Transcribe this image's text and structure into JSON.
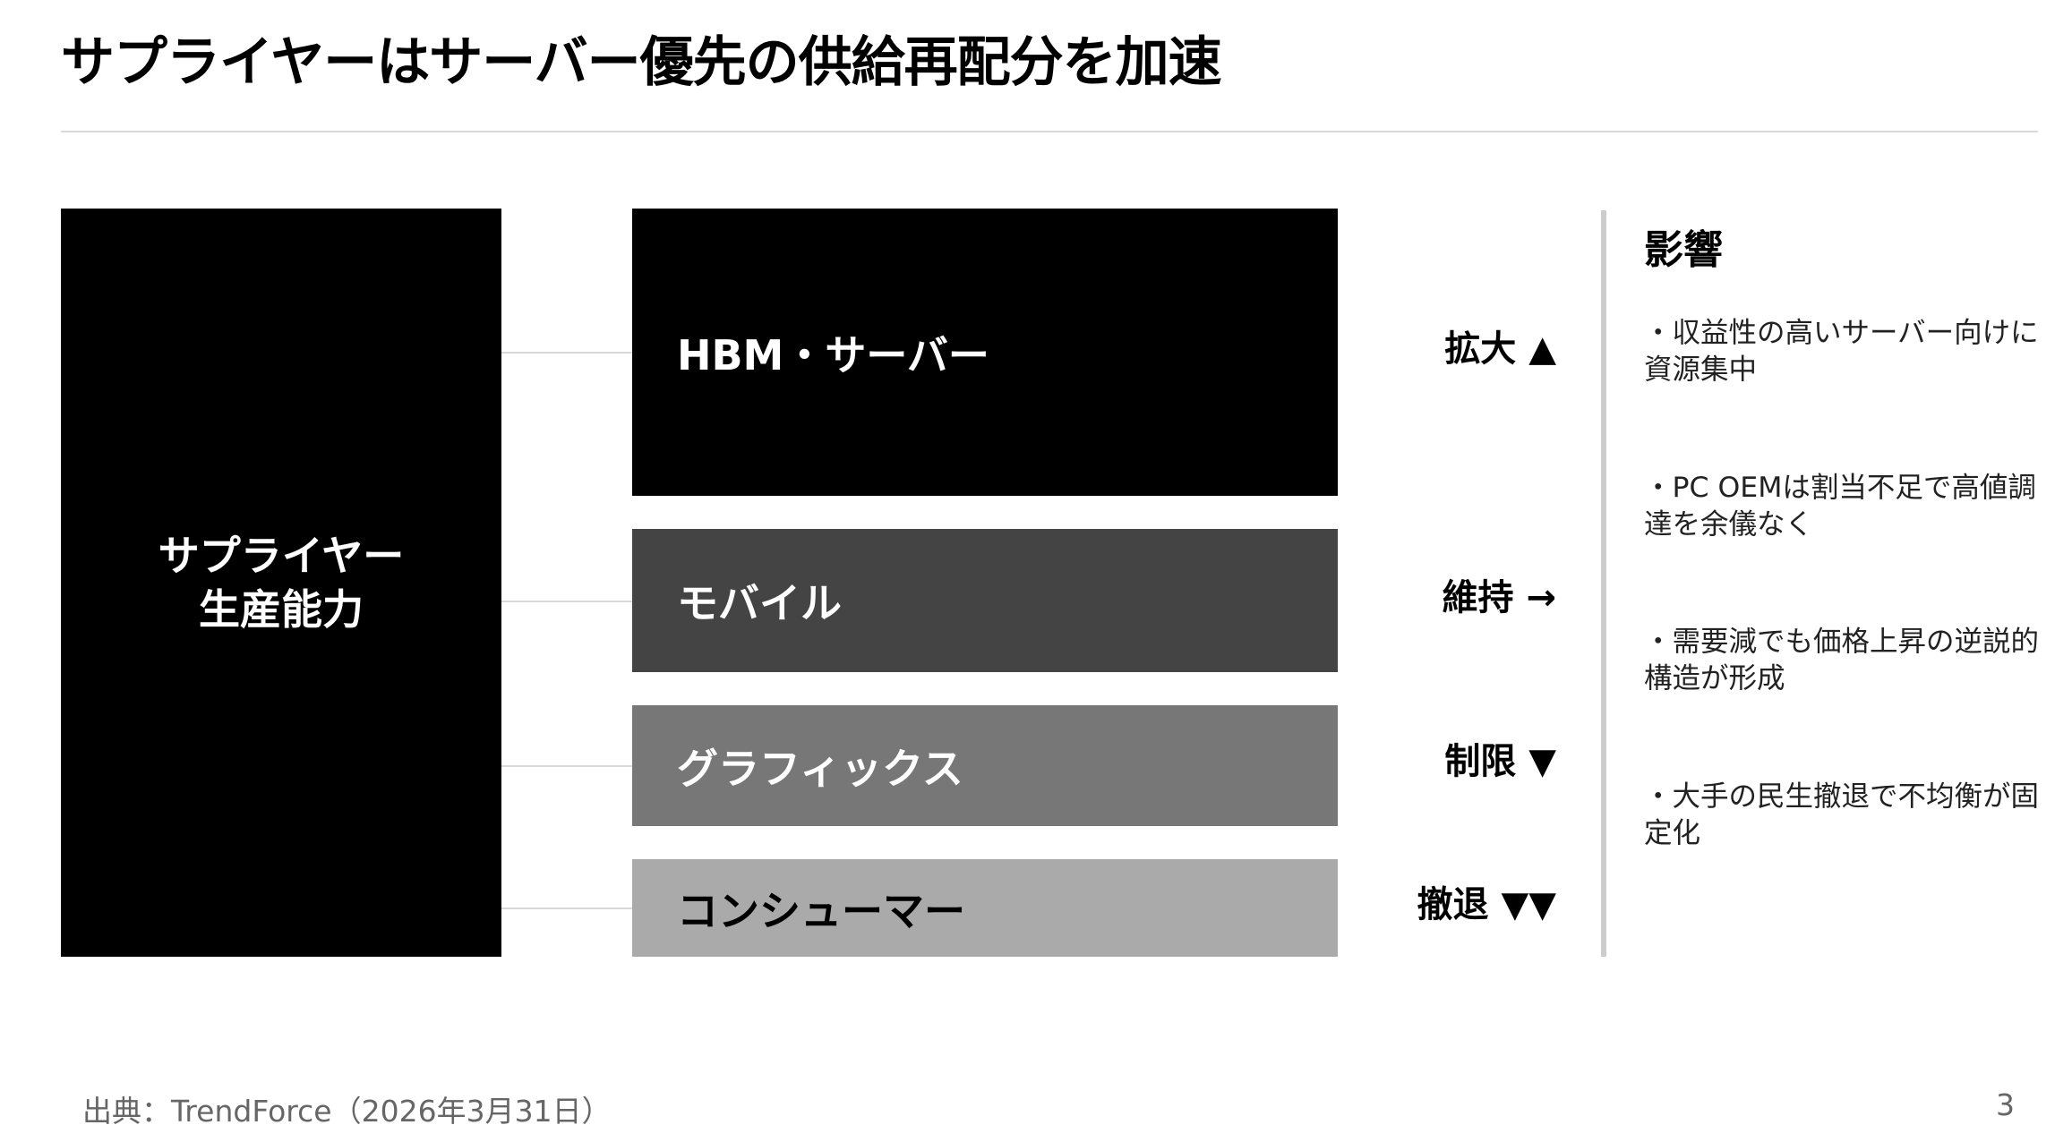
{
  "title": "サプライヤーはサーバー優先の供給再配分を加速",
  "supplier": {
    "line1": "サプライヤー",
    "line2": "生産能力"
  },
  "segments": [
    {
      "label": "HBM・サーバー",
      "trend": "拡大 ▲",
      "color": "#000000"
    },
    {
      "label": "モバイル",
      "trend": "維持 →",
      "color": "#444444"
    },
    {
      "label": "グラフィックス",
      "trend": "制限 ▼",
      "color": "#777777"
    },
    {
      "label": "コンシューマー",
      "trend": "撤退 ▼▼",
      "color": "#aaaaaa"
    }
  ],
  "impact": {
    "heading": "影響",
    "items": [
      "・収益性の高いサーバー向けに資源集中",
      "・PC OEMは割当不足で高値調達を余儀なく",
      "・需要減でも価格上昇の逆説的構造が形成",
      "・大手の民生撤退で不均衡が固定化"
    ]
  },
  "footer": {
    "source": "出典：TrendForce（2026年3月31日）",
    "page": "3"
  }
}
